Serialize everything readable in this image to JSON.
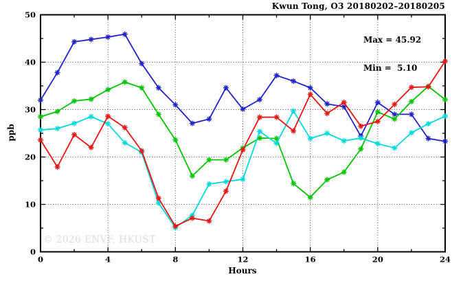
{
  "chart_data": {
    "type": "line",
    "title": "Kwun Tong, O3 20180202–20180205",
    "annotations": {
      "max_label": "Max = 45.92",
      "min_label": "Min =  5.10"
    },
    "xlabel": "Hours",
    "ylabel": "ppb",
    "watermark": "© 2026 ENVF, HKUST",
    "xlim": [
      0,
      24
    ],
    "ylim": [
      0,
      50
    ],
    "x_major_ticks": [
      0,
      4,
      8,
      12,
      16,
      20,
      24
    ],
    "x_minor_step": 2,
    "y_major_ticks": [
      0,
      10,
      20,
      30,
      40,
      50
    ],
    "y_minor_step": 5,
    "grid": "dotted lines at major ticks, no legend, black frame on all four sides",
    "x": [
      0,
      1,
      2,
      3,
      4,
      5,
      6,
      7,
      8,
      9,
      10,
      11,
      12,
      13,
      14,
      15,
      16,
      17,
      18,
      19,
      20,
      21,
      22,
      23,
      24
    ],
    "series": [
      {
        "name": "day-1-blue",
        "color": "#2121cc",
        "values": [
          32.0,
          37.8,
          44.3,
          44.8,
          45.3,
          45.9,
          39.7,
          34.6,
          31.0,
          27.1,
          28.0,
          34.6,
          30.1,
          32.1,
          37.2,
          36.0,
          34.6,
          31.2,
          30.6,
          24.4,
          31.5,
          29.0,
          29.0,
          23.9,
          23.3
        ]
      },
      {
        "name": "day-2-green",
        "color": "#00c400",
        "values": [
          28.5,
          29.6,
          31.8,
          32.2,
          34.2,
          35.8,
          34.6,
          29.0,
          23.6,
          16.0,
          19.4,
          19.4,
          21.9,
          24.0,
          23.9,
          14.4,
          11.5,
          15.2,
          16.8,
          21.7,
          29.5,
          28.0,
          31.7,
          34.9,
          32.1
        ]
      },
      {
        "name": "day-3-cyan",
        "color": "#00d9d9",
        "values": [
          25.7,
          26.0,
          27.1,
          28.5,
          27.0,
          23.0,
          21.0,
          10.3,
          5.1,
          7.7,
          14.3,
          14.8,
          15.3,
          25.4,
          22.9,
          29.7,
          23.9,
          25.0,
          23.4,
          24.0,
          22.8,
          21.9,
          25.1,
          27.0,
          28.6
        ]
      },
      {
        "name": "day-4-red",
        "color": "#ee1111",
        "values": [
          23.6,
          17.9,
          24.7,
          22.0,
          28.6,
          26.2,
          21.3,
          11.3,
          5.4,
          7.1,
          6.5,
          12.8,
          21.5,
          28.4,
          28.4,
          25.5,
          33.2,
          29.2,
          31.5,
          26.5,
          27.5,
          31.1,
          34.7,
          34.8,
          40.2
        ]
      }
    ],
    "stats": {
      "max": 45.92,
      "min": 5.1
    }
  }
}
